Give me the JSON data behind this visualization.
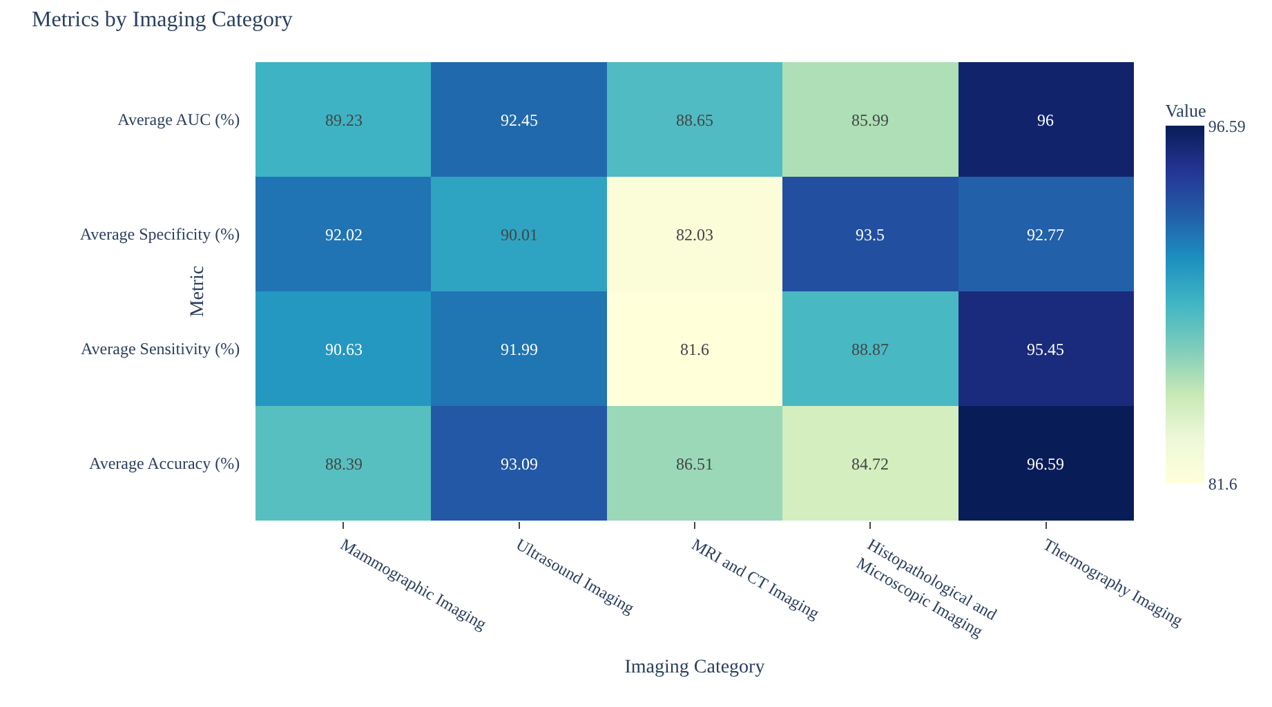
{
  "chart_data": {
    "type": "heatmap",
    "title": "Metrics by Imaging Category",
    "xlabel": "Imaging Category",
    "ylabel": "Metric",
    "clabel": "Value",
    "categories": [
      "Mammographic Imaging",
      "Ultrasound Imaging",
      "MRI and CT Imaging",
      "Histopathological and Microscopic Imaging",
      "Thermography Imaging"
    ],
    "y_categories": [
      "Average AUC (%)",
      "Average Specificity (%)",
      "Average Sensitivity (%)",
      "Average Accuracy (%)"
    ],
    "cells": [
      [
        89.23,
        92.45,
        88.65,
        85.99,
        96
      ],
      [
        92.02,
        90.01,
        82.03,
        93.5,
        92.77
      ],
      [
        90.63,
        91.99,
        81.6,
        88.87,
        95.45
      ],
      [
        88.39,
        93.09,
        86.51,
        84.72,
        96.59
      ]
    ],
    "clim": [
      81.6,
      96.59
    ],
    "cticks": [
      81.6,
      96.59
    ],
    "data_labels": true
  }
}
